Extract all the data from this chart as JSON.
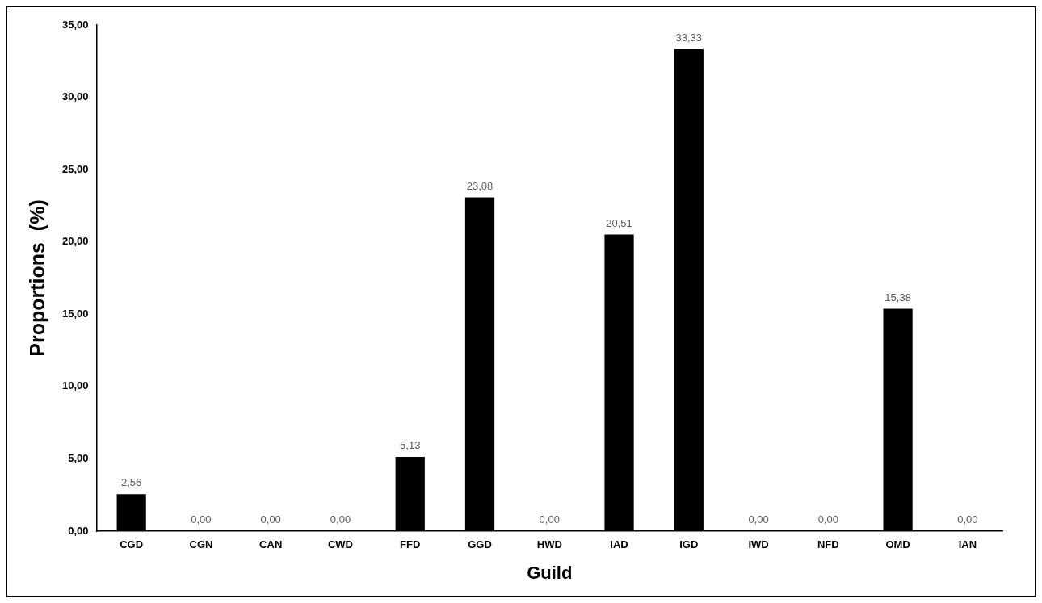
{
  "chart_data": {
    "type": "bar",
    "xlabel": "Guild",
    "ylabel": "Proportions  (%)",
    "categories": [
      "CGD",
      "CGN",
      "CAN",
      "CWD",
      "FFD",
      "GGD",
      "HWD",
      "IAD",
      "IGD",
      "IWD",
      "NFD",
      "OMD",
      "IAN"
    ],
    "values": [
      2.56,
      0,
      0,
      0,
      5.13,
      23.08,
      0,
      20.51,
      33.33,
      0,
      0,
      15.38,
      0
    ],
    "value_labels": [
      "2,56",
      "0,00",
      "0,00",
      "0,00",
      "5,13",
      "23,08",
      "0,00",
      "20,51",
      "33,33",
      "0,00",
      "0,00",
      "15,38",
      "0,00"
    ],
    "color": "#000000",
    "ylim": [
      0,
      35
    ],
    "yticks": [
      {
        "value": 0,
        "label": "0,00"
      },
      {
        "value": 5,
        "label": "5,00"
      },
      {
        "value": 10,
        "label": "10,00"
      },
      {
        "value": 15,
        "label": "15,00"
      },
      {
        "value": 20,
        "label": "20,00"
      },
      {
        "value": 25,
        "label": "25,00"
      },
      {
        "value": 30,
        "label": "30,00"
      },
      {
        "value": 35,
        "label": "35,00"
      }
    ],
    "grid": false,
    "legend": false
  }
}
